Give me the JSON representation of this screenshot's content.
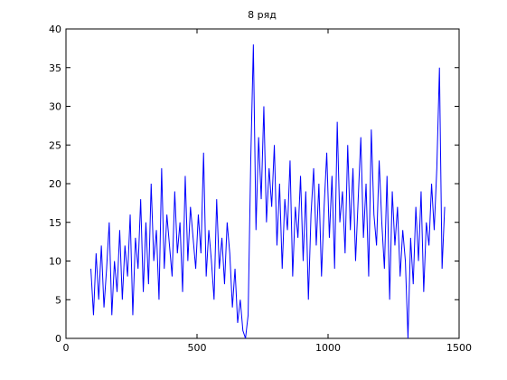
{
  "chart_data": {
    "type": "line",
    "title": "8 ряд",
    "x": [
      95,
      105,
      115,
      125,
      135,
      145,
      155,
      165,
      175,
      185,
      195,
      205,
      215,
      225,
      235,
      245,
      255,
      265,
      275,
      285,
      295,
      305,
      315,
      325,
      335,
      345,
      355,
      365,
      375,
      385,
      395,
      405,
      415,
      425,
      435,
      445,
      455,
      465,
      475,
      485,
      495,
      505,
      515,
      525,
      535,
      545,
      555,
      565,
      575,
      585,
      595,
      605,
      615,
      625,
      635,
      645,
      655,
      665,
      675,
      685,
      695,
      705,
      715,
      725,
      735,
      745,
      755,
      765,
      775,
      785,
      795,
      805,
      815,
      825,
      835,
      845,
      855,
      865,
      875,
      885,
      895,
      905,
      915,
      925,
      935,
      945,
      955,
      965,
      975,
      985,
      995,
      1005,
      1015,
      1025,
      1035,
      1045,
      1055,
      1065,
      1075,
      1085,
      1095,
      1105,
      1115,
      1125,
      1135,
      1145,
      1155,
      1165,
      1175,
      1185,
      1195,
      1205,
      1215,
      1225,
      1235,
      1245,
      1255,
      1265,
      1275,
      1285,
      1295,
      1305,
      1315,
      1325,
      1335,
      1345,
      1355,
      1365,
      1375,
      1385,
      1395,
      1405,
      1415,
      1425,
      1435,
      1445
    ],
    "series": [
      {
        "color": "#0000ff",
        "values": [
          9,
          3,
          11,
          5,
          12,
          4,
          9,
          15,
          3,
          10,
          6,
          14,
          5,
          12,
          8,
          16,
          3,
          13,
          9,
          18,
          6,
          15,
          7,
          20,
          10,
          14,
          5,
          22,
          9,
          16,
          12,
          8,
          19,
          11,
          15,
          6,
          21,
          10,
          17,
          13,
          9,
          16,
          11,
          24,
          8,
          14,
          10,
          5,
          18,
          9,
          13,
          7,
          15,
          11,
          4,
          9,
          2,
          5,
          1,
          0,
          3,
          23,
          38,
          14,
          26,
          18,
          30,
          15,
          22,
          17,
          25,
          12,
          20,
          9,
          18,
          14,
          23,
          8,
          17,
          13,
          21,
          10,
          19,
          5,
          16,
          22,
          12,
          20,
          8,
          17,
          24,
          13,
          21,
          9,
          28,
          15,
          19,
          11,
          25,
          14,
          22,
          10,
          18,
          26,
          13,
          20,
          8,
          27,
          16,
          12,
          23,
          15,
          9,
          21,
          5,
          19,
          12,
          17,
          8,
          14,
          10,
          0,
          13,
          7,
          17,
          10,
          19,
          6,
          15,
          12,
          20,
          14,
          22,
          35,
          9,
          17
        ]
      }
    ],
    "xlim": [
      0,
      1500
    ],
    "ylim": [
      0,
      40
    ],
    "xticks": [
      0,
      500,
      1000,
      1500
    ],
    "yticks": [
      0,
      5,
      10,
      15,
      20,
      25,
      30,
      35,
      40
    ]
  }
}
